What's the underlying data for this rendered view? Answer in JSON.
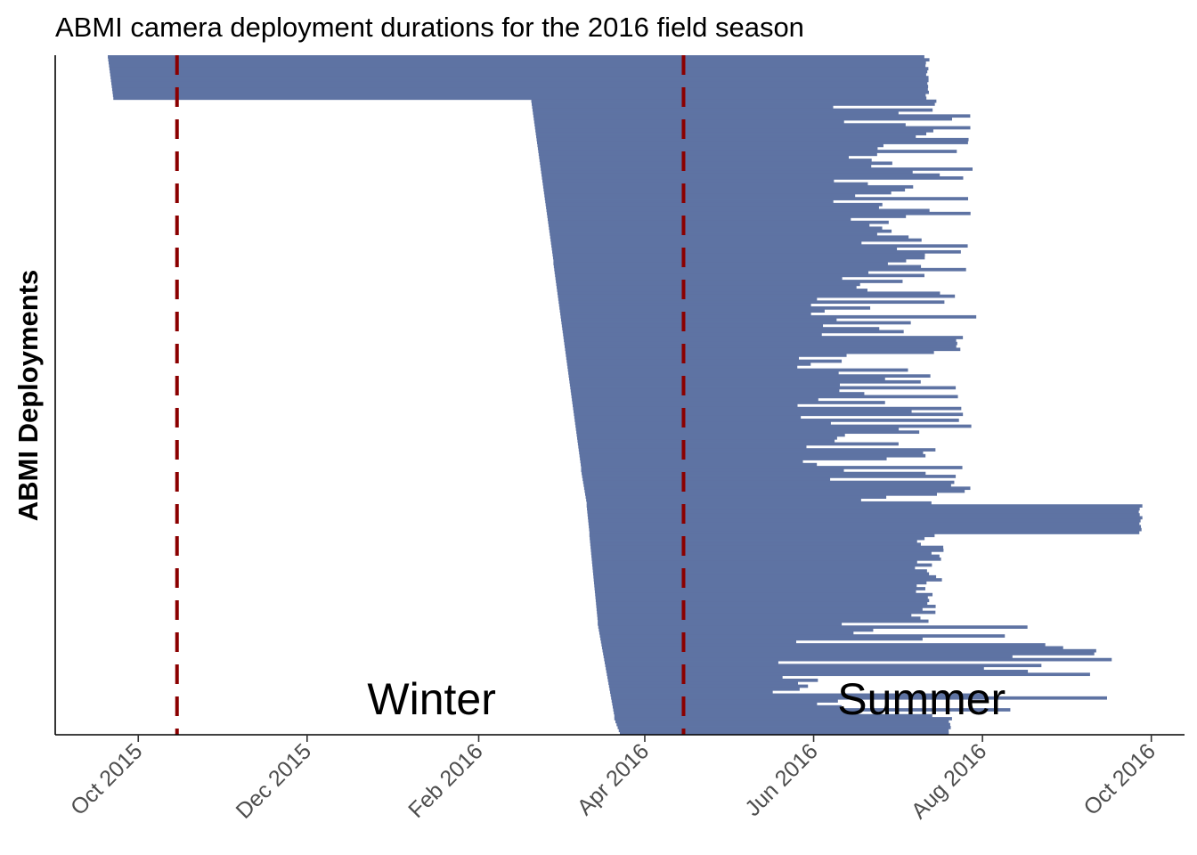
{
  "chart_data": {
    "type": "bar",
    "orientation": "horizontal-range",
    "title": "ABMI camera deployment durations for the 2016 field season",
    "xlabel": "",
    "ylabel": "ABMI Deployments",
    "x_ticks": [
      {
        "label": "Oct 2015",
        "date": "2015-10-01"
      },
      {
        "label": "Dec 2015",
        "date": "2015-12-01"
      },
      {
        "label": "Feb 2016",
        "date": "2016-02-01"
      },
      {
        "label": "Apr 2016",
        "date": "2016-04-01"
      },
      {
        "label": "Jun 2016",
        "date": "2016-06-01"
      },
      {
        "label": "Aug 2016",
        "date": "2016-08-01"
      },
      {
        "label": "Oct 2016",
        "date": "2016-10-01"
      }
    ],
    "xlim": [
      "2015-09-01",
      "2016-10-13"
    ],
    "reference_lines": [
      {
        "date": "2015-10-15",
        "color": "#8b0000",
        "style": "dashed"
      },
      {
        "date": "2016-04-15",
        "color": "#8b0000",
        "style": "dashed"
      }
    ],
    "annotations": [
      {
        "text": "Winter",
        "date": "2016-01-15"
      },
      {
        "text": "Summer",
        "date": "2016-07-10"
      }
    ],
    "bar_color": "#5e73a3",
    "grid": false,
    "legend": "none",
    "groups": [
      {
        "count": 15,
        "start": [
          "2015-09-20",
          "2015-09-22"
        ],
        "end": [
          "2016-07-11",
          "2016-07-13"
        ]
      },
      {
        "count": 55,
        "start": [
          "2016-02-20",
          "2016-02-28"
        ],
        "end": [
          "2016-06-05",
          "2016-08-01"
        ]
      },
      {
        "count": 70,
        "start": [
          "2016-02-28",
          "2016-03-09"
        ],
        "end": [
          "2016-05-26",
          "2016-07-30"
        ]
      },
      {
        "count": 12,
        "start": [
          "2016-03-09",
          "2016-03-11"
        ],
        "end": [
          "2016-06-05",
          "2016-07-28"
        ]
      },
      {
        "count": 10,
        "start": [
          "2016-03-11",
          "2016-03-12"
        ],
        "end": [
          "2016-09-26",
          "2016-09-28"
        ]
      },
      {
        "count": 30,
        "start": [
          "2016-03-12",
          "2016-03-15"
        ],
        "end": [
          "2016-07-06",
          "2016-07-18"
        ]
      },
      {
        "count": 32,
        "start": [
          "2016-03-15",
          "2016-03-21"
        ],
        "end": [
          "2016-05-16",
          "2016-09-22"
        ]
      },
      {
        "count": 6,
        "start": [
          "2016-03-21",
          "2016-03-23"
        ],
        "end": [
          "2016-07-19",
          "2016-07-21"
        ]
      }
    ]
  }
}
